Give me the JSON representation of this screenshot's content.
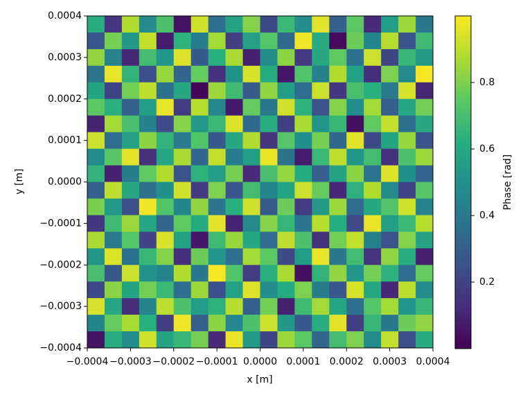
{
  "chart_data": {
    "type": "heatmap",
    "xlabel": "x [m]",
    "ylabel": "y [m]",
    "colorbar_label": "Phase [rad]",
    "colormap": "viridis",
    "xlim": [
      -0.0004,
      0.0004
    ],
    "ylim": [
      -0.0004,
      0.0004
    ],
    "clim": [
      0.0,
      1.0
    ],
    "xticks": [
      {
        "value": -0.0004,
        "label": "−0.0004"
      },
      {
        "value": -0.0003,
        "label": "−0.0003"
      },
      {
        "value": -0.0002,
        "label": "−0.0002"
      },
      {
        "value": -0.0001,
        "label": "−0.0001"
      },
      {
        "value": 0,
        "label": "0.0000"
      },
      0.0001,
      0.0002,
      0.0003,
      0.0004
    ],
    "yticks": [
      {
        "value": -0.0004,
        "label": "−0.0004"
      },
      {
        "value": -0.0003,
        "label": "−0.0003"
      },
      {
        "value": -0.0002,
        "label": "−0.0002"
      },
      {
        "value": -0.0001,
        "label": "−0.0001"
      },
      {
        "value": 0,
        "label": "0.0000"
      },
      0.0001,
      0.0002,
      0.0003,
      0.0004
    ],
    "cticks": [
      0.2,
      0.4,
      0.6,
      0.8
    ],
    "z": [
      [
        0.62,
        0.15,
        0.88,
        0.47,
        0.71,
        0.05,
        0.93,
        0.36,
        0.58,
        0.81,
        0.22,
        0.67,
        0.49,
        0.96,
        0.31,
        0.74,
        0.12,
        0.55,
        0.85,
        0.4
      ],
      [
        0.27,
        0.79,
        0.53,
        0.91,
        0.08,
        0.64,
        0.42,
        0.86,
        0.19,
        0.57,
        0.73,
        0.34,
        0.98,
        0.61,
        0.03,
        0.77,
        0.45,
        0.89,
        0.26,
        0.68
      ],
      [
        0.83,
        0.44,
        0.11,
        0.69,
        0.52,
        0.95,
        0.28,
        0.63,
        0.87,
        0.09,
        0.48,
        0.82,
        0.17,
        0.59,
        0.75,
        0.38,
        0.92,
        0.21,
        0.66,
        0.54
      ],
      [
        0.39,
        0.97,
        0.65,
        0.24,
        0.84,
        0.32,
        0.76,
        0.14,
        0.51,
        0.94,
        0.61,
        0.06,
        0.72,
        0.43,
        0.88,
        0.57,
        0.13,
        0.8,
        0.47,
        0.99
      ],
      [
        0.58,
        0.2,
        0.78,
        0.9,
        0.37,
        0.6,
        0.02,
        0.85,
        0.68,
        0.29,
        0.83,
        0.55,
        0.35,
        0.92,
        0.16,
        0.7,
        0.63,
        0.41,
        0.94,
        0.11
      ],
      [
        0.74,
        0.63,
        0.31,
        0.56,
        0.97,
        0.18,
        0.89,
        0.46,
        0.07,
        0.76,
        0.4,
        0.93,
        0.64,
        0.25,
        0.81,
        0.49,
        0.86,
        0.3,
        0.59,
        0.78
      ],
      [
        0.1,
        0.86,
        0.7,
        0.43,
        0.23,
        0.81,
        0.54,
        0.67,
        0.95,
        0.34,
        0.62,
        0.19,
        0.87,
        0.52,
        0.66,
        0.04,
        0.75,
        0.91,
        0.37,
        0.6
      ],
      [
        0.92,
        0.35,
        0.57,
        0.82,
        0.65,
        0.41,
        0.72,
        0.28,
        0.6,
        0.88,
        0.15,
        0.73,
        0.5,
        0.79,
        0.33,
        0.96,
        0.22,
        0.58,
        0.84,
        0.27
      ],
      [
        0.48,
        0.73,
        0.96,
        0.14,
        0.59,
        0.87,
        0.33,
        0.91,
        0.42,
        0.56,
        0.97,
        0.38,
        0.08,
        0.67,
        0.9,
        0.53,
        0.69,
        0.14,
        0.71,
        0.85
      ],
      [
        0.65,
        0.09,
        0.42,
        0.75,
        0.88,
        0.26,
        0.64,
        0.55,
        0.79,
        0.12,
        0.7,
        0.84,
        0.61,
        0.3,
        0.57,
        0.82,
        0.39,
        0.95,
        0.5,
        0.32
      ],
      [
        0.31,
        0.9,
        0.6,
        0.37,
        0.5,
        0.93,
        0.17,
        0.8,
        0.26,
        0.69,
        0.45,
        0.58,
        0.92,
        0.76,
        0.11,
        0.64,
        0.88,
        0.47,
        0.2,
        0.73
      ],
      [
        0.79,
        0.54,
        0.24,
        0.98,
        0.72,
        0.45,
        0.83,
        0.39,
        0.63,
        0.93,
        0.29,
        0.77,
        0.18,
        0.54,
        0.85,
        0.35,
        0.6,
        0.72,
        0.93,
        0.44
      ],
      [
        0.16,
        0.68,
        0.85,
        0.59,
        0.32,
        0.75,
        0.61,
        0.96,
        0.1,
        0.47,
        0.81,
        0.66,
        0.39,
        0.89,
        0.62,
        0.23,
        0.97,
        0.56,
        0.67,
        0.89
      ],
      [
        0.87,
        0.41,
        0.73,
        0.2,
        0.94,
        0.57,
        0.06,
        0.68,
        0.84,
        0.6,
        0.35,
        0.9,
        0.71,
        0.14,
        0.78,
        0.91,
        0.43,
        0.25,
        0.81,
        0.57
      ],
      [
        0.53,
        0.95,
        0.38,
        0.66,
        0.81,
        0.13,
        0.77,
        0.52,
        0.36,
        0.86,
        0.74,
        0.22,
        0.55,
        0.97,
        0.4,
        0.69,
        0.15,
        0.83,
        0.62,
        0.09
      ],
      [
        0.7,
        0.27,
        0.92,
        0.51,
        0.44,
        0.88,
        0.4,
        0.99,
        0.72,
        0.18,
        0.63,
        0.87,
        0.04,
        0.65,
        0.83,
        0.52,
        0.78,
        0.64,
        0.36,
        0.76
      ],
      [
        0.22,
        0.82,
        0.58,
        0.78,
        0.67,
        0.36,
        0.85,
        0.24,
        0.57,
        0.95,
        0.49,
        0.61,
        0.8,
        0.42,
        0.27,
        0.94,
        0.59,
        0.11,
        0.9,
        0.48
      ],
      [
        0.94,
        0.6,
        0.13,
        0.45,
        0.9,
        0.71,
        0.55,
        0.64,
        0.89,
        0.31,
        0.78,
        0.09,
        0.68,
        0.86,
        0.59,
        0.37,
        0.73,
        0.86,
        0.52,
        0.66
      ],
      [
        0.45,
        0.76,
        0.87,
        0.63,
        0.19,
        0.98,
        0.3,
        0.82,
        0.46,
        0.71,
        0.92,
        0.53,
        0.28,
        0.62,
        0.96,
        0.18,
        0.66,
        0.4,
        0.77,
        0.83
      ],
      [
        0.05,
        0.62,
        0.49,
        0.93,
        0.58,
        0.66,
        0.79,
        0.12,
        0.97,
        0.54,
        0.21,
        0.85,
        0.74,
        0.33,
        0.69,
        0.8,
        0.48,
        0.91,
        0.24,
        0.61
      ]
    ]
  }
}
